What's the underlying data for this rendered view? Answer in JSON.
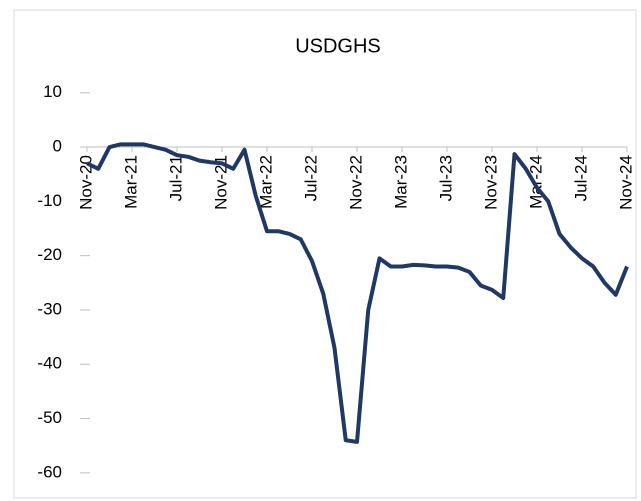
{
  "chart_data": {
    "type": "line",
    "title": "USDGHS",
    "categories": [
      "Nov-20",
      null,
      null,
      null,
      "Mar-21",
      null,
      null,
      null,
      "Jul-21",
      null,
      null,
      null,
      "Nov-21",
      null,
      null,
      null,
      "Mar-22",
      null,
      null,
      null,
      "Jul-22",
      null,
      null,
      null,
      "Nov-22",
      null,
      null,
      null,
      "Mar-23",
      null,
      null,
      null,
      "Jul-23",
      null,
      null,
      null,
      "Nov-23",
      null,
      null,
      null,
      "Mar-24",
      null,
      null,
      null,
      "Jul-24",
      null,
      null,
      null,
      "Nov-24"
    ],
    "series": [
      {
        "name": "USDGHS",
        "color": "#1f3864",
        "values": [
          -3,
          -4,
          0,
          0.5,
          0.5,
          0.5,
          0,
          -0.5,
          -1.5,
          -1.8,
          -2.5,
          -2.8,
          -3,
          -4,
          -0.5,
          -9,
          -15.5,
          -15.5,
          -16,
          -17,
          -21,
          -27,
          -37,
          -54,
          -54.3,
          -30,
          -20.5,
          -22,
          -22,
          -21.7,
          -21.8,
          -22,
          -22,
          -22.2,
          -23,
          -25.5,
          -26.3,
          -27.8,
          -1.3,
          -4,
          -7.5,
          -10,
          -16,
          -18.5,
          -20.5,
          -22,
          -25,
          -27.2,
          -22
        ]
      }
    ],
    "ylim": [
      -65,
      15
    ],
    "yticks": [
      10,
      0,
      -10,
      -20,
      -30,
      -40,
      -50,
      -60
    ]
  }
}
